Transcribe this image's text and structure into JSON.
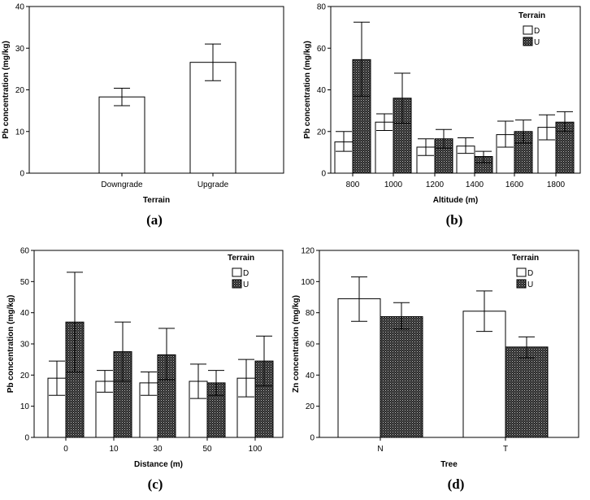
{
  "chart_data": [
    {
      "panel_label": "(a)",
      "type": "bar",
      "xlabel": "Terrain",
      "ylabel": "Pb concentration (mg/kg)",
      "ylim": [
        0,
        40
      ],
      "yticks": [
        0,
        10,
        20,
        30,
        40
      ],
      "categories": [
        "Downgrade",
        "Upgrade"
      ],
      "series": [
        {
          "values": [
            18.3,
            26.6
          ],
          "error_low": [
            16.2,
            22.2
          ],
          "error_high": [
            20.4,
            31.0
          ],
          "fill": "white"
        }
      ]
    },
    {
      "panel_label": "(b)",
      "type": "bar",
      "xlabel": "Altitude (m)",
      "ylabel": "Pb concentration (mg/kg)",
      "ylim": [
        0,
        80
      ],
      "yticks": [
        0,
        20,
        40,
        60,
        80
      ],
      "categories": [
        "800",
        "1000",
        "1200",
        "1400",
        "1600",
        "1800"
      ],
      "legend": {
        "title": "Terrain",
        "position": "top-right"
      },
      "series": [
        {
          "name": "D",
          "fill": "white",
          "values": [
            15,
            24.5,
            12.5,
            13,
            18.5,
            22
          ],
          "error_low": [
            10.5,
            20.5,
            8.5,
            9.5,
            12.5,
            16
          ],
          "error_high": [
            20,
            28.5,
            16.5,
            17,
            25,
            28
          ]
        },
        {
          "name": "U",
          "fill": "pattern",
          "values": [
            54.5,
            36,
            16.5,
            8,
            20,
            24.5
          ],
          "error_low": [
            37,
            24,
            12,
            5,
            14.5,
            20
          ],
          "error_high": [
            72.5,
            48,
            21,
            10.5,
            25.5,
            29.5
          ]
        }
      ]
    },
    {
      "panel_label": "(c)",
      "type": "bar",
      "xlabel": "Distance (m)",
      "ylabel": "Pb concentration (mg/kg)",
      "ylim": [
        0,
        60
      ],
      "yticks": [
        0,
        10,
        20,
        30,
        40,
        50,
        60
      ],
      "categories": [
        "0",
        "10",
        "30",
        "50",
        "100"
      ],
      "legend": {
        "title": "Terrain",
        "position": "top-right"
      },
      "series": [
        {
          "name": "D",
          "fill": "white",
          "values": [
            19,
            18,
            17.5,
            18,
            19
          ],
          "error_low": [
            13.5,
            14.5,
            13.5,
            12.5,
            13
          ],
          "error_high": [
            24.5,
            21.5,
            21,
            23.5,
            25
          ]
        },
        {
          "name": "U",
          "fill": "pattern",
          "values": [
            37,
            27.5,
            26.5,
            17.5,
            24.5
          ],
          "error_low": [
            21,
            18,
            18.5,
            13.5,
            16.5
          ],
          "error_high": [
            53,
            37,
            35,
            21.5,
            32.5
          ]
        }
      ]
    },
    {
      "panel_label": "(d)",
      "type": "bar",
      "xlabel": "Tree",
      "ylabel": "Zn concentration (mg/kg)",
      "ylim": [
        0,
        120
      ],
      "yticks": [
        0,
        20,
        40,
        60,
        80,
        100,
        120
      ],
      "categories": [
        "N",
        "T"
      ],
      "legend": {
        "title": "Terrain",
        "position": "top-right"
      },
      "series": [
        {
          "name": "D",
          "fill": "white",
          "values": [
            89,
            81
          ],
          "error_low": [
            74.5,
            68
          ],
          "error_high": [
            103,
            94
          ]
        },
        {
          "name": "U",
          "fill": "pattern",
          "values": [
            77.5,
            58
          ],
          "error_low": [
            69.5,
            51
          ],
          "error_high": [
            86.5,
            64.5
          ]
        }
      ]
    }
  ]
}
